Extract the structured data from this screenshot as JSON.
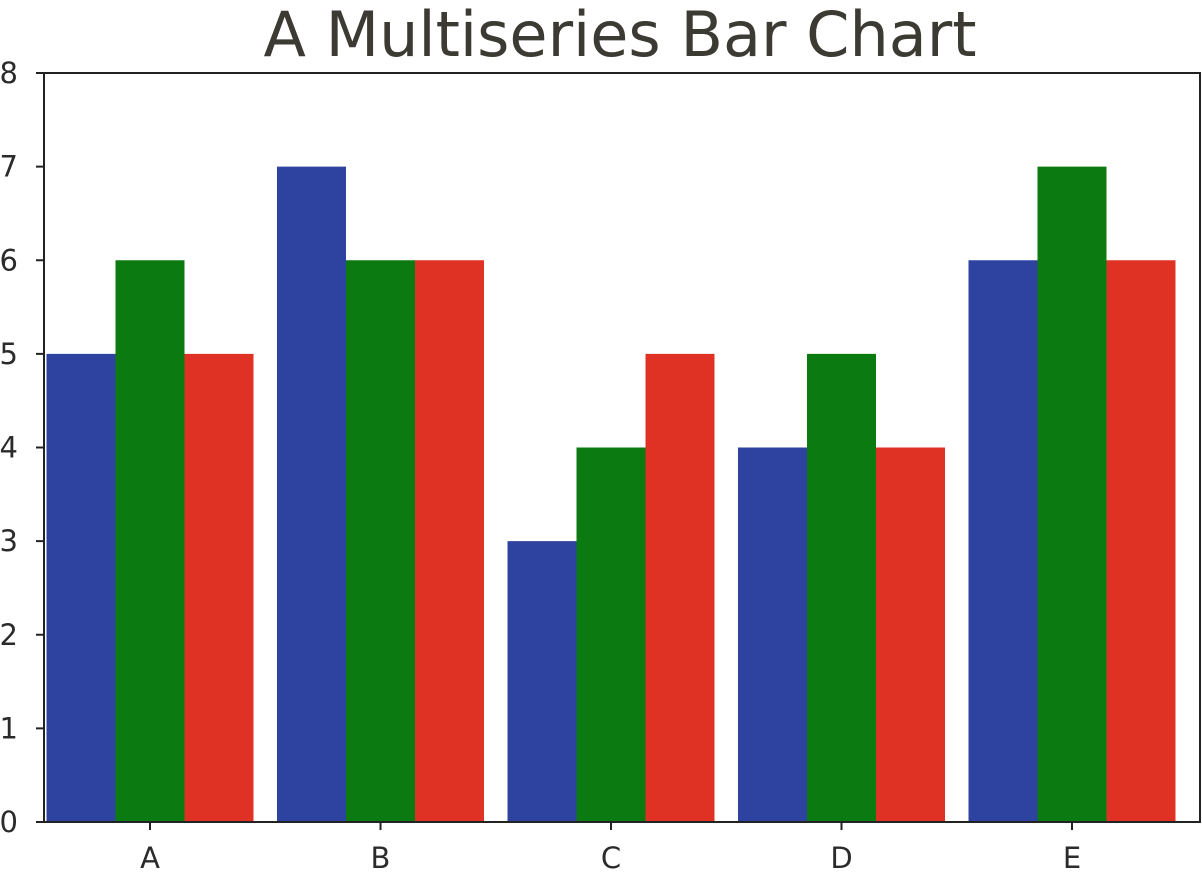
{
  "chart_data": {
    "type": "bar",
    "title": "A Multiseries Bar Chart",
    "xlabel": "",
    "ylabel": "",
    "categories": [
      "A",
      "B",
      "C",
      "D",
      "E"
    ],
    "series": [
      {
        "values": [
          5,
          7,
          3,
          4,
          6
        ],
        "color": "#2e43a0"
      },
      {
        "values": [
          6,
          6,
          4,
          5,
          7
        ],
        "color": "#0b7a10"
      },
      {
        "values": [
          5,
          6,
          5,
          4,
          6
        ],
        "color": "#e03224"
      }
    ],
    "ylim": [
      0,
      8
    ],
    "yticks": [
      0,
      1,
      2,
      3,
      4,
      5,
      6,
      7,
      8
    ],
    "grid": false,
    "legend": "none"
  }
}
